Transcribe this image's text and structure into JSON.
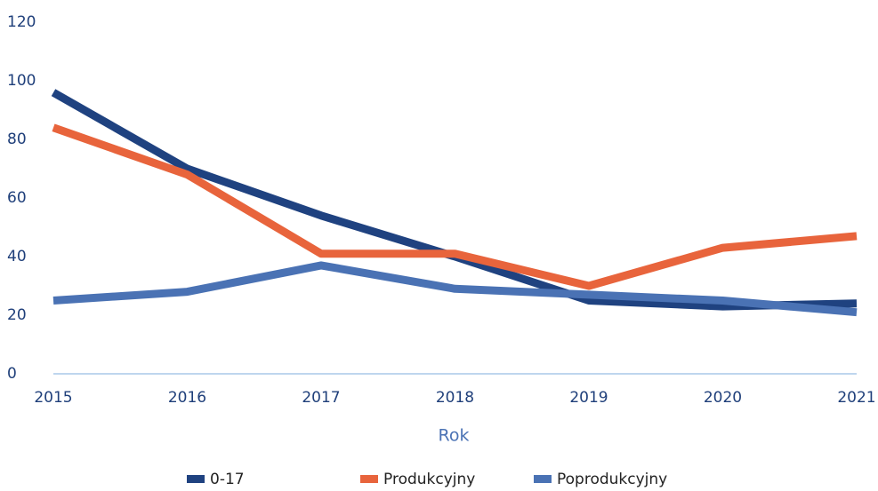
{
  "chart_data": {
    "type": "line",
    "categories": [
      "2015",
      "2016",
      "2017",
      "2018",
      "2019",
      "2020",
      "2021"
    ],
    "x_label": "Rok",
    "series": [
      {
        "name": "0-17",
        "color": "#1f4280",
        "values": [
          96,
          70,
          54,
          40,
          25,
          23,
          24
        ]
      },
      {
        "name": "Produkcyjny",
        "color": "#e8643c",
        "values": [
          84,
          68,
          41,
          41,
          30,
          43,
          47
        ]
      },
      {
        "name": "Poprodukcyjny",
        "color": "#4a72b4",
        "values": [
          25,
          28,
          37,
          29,
          27,
          25,
          21
        ]
      }
    ],
    "ylim": [
      0,
      120
    ],
    "yticks": [
      0,
      20,
      40,
      60,
      80,
      100,
      120
    ],
    "grid": false,
    "legend": "bottom"
  }
}
